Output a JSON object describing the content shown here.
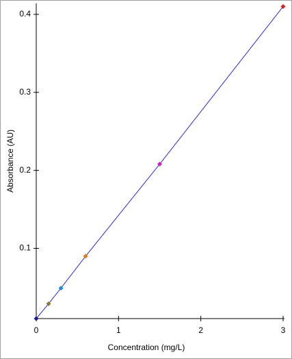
{
  "chart_data": {
    "type": "scatter-line",
    "x_label": "Concentration (mg/L)",
    "y_label": "Absorbance (AU)",
    "x": [
      0,
      0.15,
      0.3,
      0.6,
      1.5,
      3
    ],
    "values": [
      0.01,
      0.029,
      0.049,
      0.09,
      0.208,
      0.41
    ],
    "colors": [
      "#1c1c8c",
      "#8a7a3a",
      "#1e8fd0",
      "#e07b20",
      "#d020c0",
      "#e02020"
    ],
    "line_color": "#2b2bd6",
    "xlim": [
      0,
      3
    ],
    "xticks": [
      0,
      1,
      2,
      3
    ],
    "ylim": [
      0.01,
      0.414
    ],
    "yticks": [
      0.1,
      0.2,
      0.3,
      0.4
    ]
  }
}
